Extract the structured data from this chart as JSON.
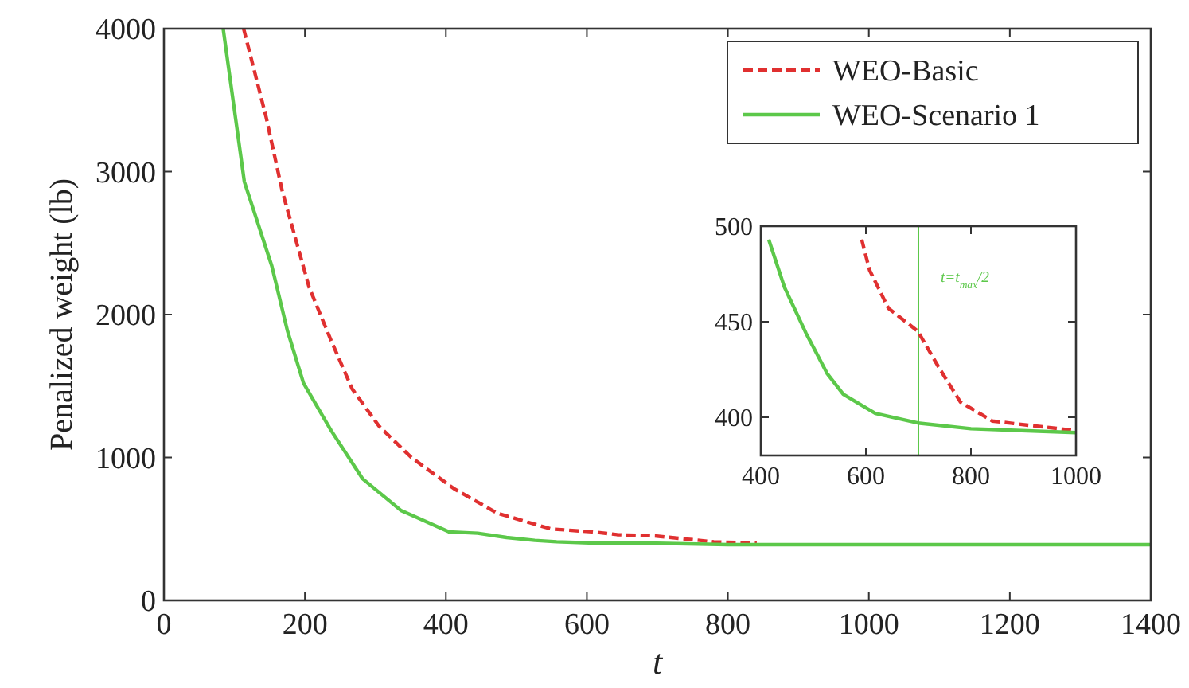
{
  "chart_data": [
    {
      "type": "line",
      "xlabel": "t",
      "ylabel": "Penalized weight (lb)",
      "xlim": [
        0,
        1400
      ],
      "ylim": [
        0,
        4000
      ],
      "xticks": [
        0,
        200,
        400,
        600,
        800,
        1000,
        1200,
        1400
      ],
      "yticks": [
        0,
        1000,
        2000,
        3000,
        4000
      ],
      "grid": false,
      "legend": "top right",
      "series": [
        {
          "name": "WEO-Basic",
          "color": "#e03030",
          "line_style": "dashed",
          "x": [
            113,
            145,
            168,
            206,
            237,
            267,
            305,
            351,
            412,
            473,
            549,
            607,
            643,
            699,
            739,
            780,
            841
          ],
          "values": [
            4000,
            3380,
            2860,
            2190,
            1820,
            1480,
            1220,
            1000,
            780,
            610,
            500,
            480,
            460,
            450,
            430,
            410,
            400
          ]
        },
        {
          "name": "WEO-Scenario 1",
          "color": "#5cc84a",
          "line_style": "solid",
          "x": [
            84,
            114,
            153,
            175,
            198,
            237,
            282,
            336,
            404,
            445,
            486,
            526,
            557,
            618,
            699,
            800,
            1000,
            1400
          ],
          "values": [
            4000,
            2930,
            2340,
            1890,
            1520,
            1190,
            850,
            630,
            480,
            470,
            440,
            420,
            410,
            400,
            400,
            390,
            390,
            390
          ]
        }
      ]
    },
    {
      "type": "line",
      "xlim": [
        400,
        1000
      ],
      "ylim": [
        380,
        500
      ],
      "xticks": [
        400,
        600,
        800,
        1000
      ],
      "yticks": [
        400,
        450,
        500
      ],
      "grid": false,
      "ref_lines": [
        {
          "axis": "x",
          "value": 700,
          "label": "t=t$_{max}$/2",
          "color": "#5cc84a"
        }
      ],
      "series": [
        {
          "color": "#e03030",
          "line_style": "dashed",
          "x": [
            592,
            607,
            643,
            699,
            739,
            780,
            841,
            1000
          ],
          "values": [
            493,
            477,
            457,
            445,
            426,
            408,
            398,
            393
          ]
        },
        {
          "color": "#5cc84a",
          "line_style": "solid",
          "x": [
            415,
            445,
            486,
            526,
            557,
            618,
            699,
            800,
            1000
          ],
          "values": [
            493,
            468,
            444,
            423,
            412,
            402,
            397,
            394,
            392
          ]
        }
      ]
    }
  ]
}
